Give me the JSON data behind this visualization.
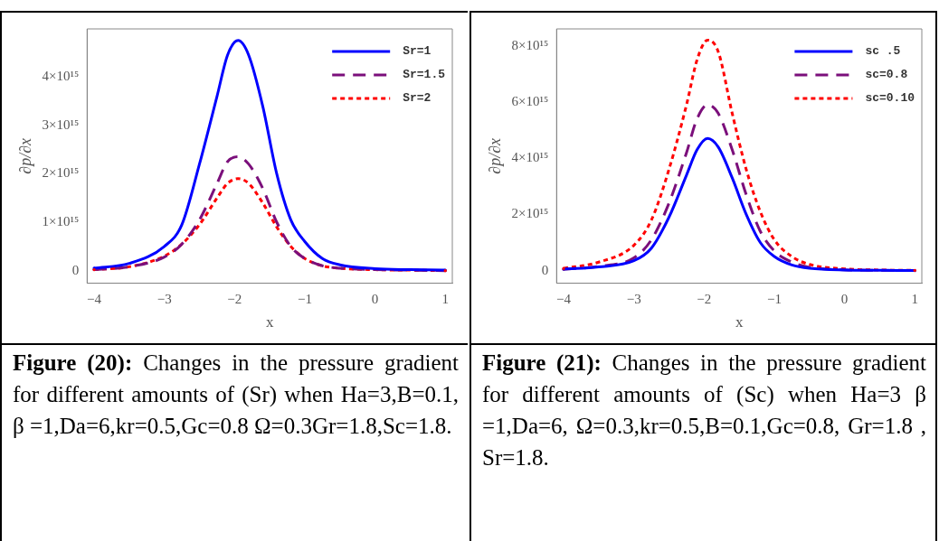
{
  "chart_data": [
    {
      "type": "line",
      "xlabel": "x",
      "ylabel": "∂p/∂x",
      "legend": "top right",
      "grid": false,
      "x": [
        -4,
        -3.5,
        -3,
        -2.75,
        -2.5,
        -2.25,
        -2.1,
        -1.95,
        -1.8,
        -1.6,
        -1.4,
        -1.2,
        -1,
        -0.75,
        -0.5,
        0,
        0.5,
        1
      ],
      "series": [
        {
          "name": "Sr=1",
          "color": "#0000ff",
          "line_style": "solid",
          "values": [
            50000000000000.0,
            150000000000000.0,
            500000000000000.0,
            950000000000000.0,
            2200000000000000.0,
            3600000000000000.0,
            4450000000000000.0,
            4750000000000000.0,
            4450000000000000.0,
            3400000000000000.0,
            2000000000000000.0,
            1050000000000000.0,
            600000000000000.0,
            250000000000000.0,
            120000000000000.0,
            40000000000000.0,
            20000000000000.0,
            10000000000000.0
          ]
        },
        {
          "name": "Sr=1.5",
          "color": "#7b0f7b",
          "line_style": "dashed",
          "values": [
            20000000000000.0,
            80000000000000.0,
            280000000000000.0,
            550000000000000.0,
            1050000000000000.0,
            1800000000000000.0,
            2250000000000000.0,
            2350000000000000.0,
            2200000000000000.0,
            1700000000000000.0,
            1000000000000000.0,
            500000000000000.0,
            250000000000000.0,
            100000000000000.0,
            50000000000000.0,
            20000000000000.0,
            10000000000000.0,
            0
          ]
        },
        {
          "name": "Sr=2",
          "color": "#ff0000",
          "line_style": "dotted",
          "values": [
            20000000000000.0,
            80000000000000.0,
            300000000000000.0,
            550000000000000.0,
            950000000000000.0,
            1500000000000000.0,
            1800000000000000.0,
            1900000000000000.0,
            1800000000000000.0,
            1400000000000000.0,
            900000000000000.0,
            500000000000000.0,
            250000000000000.0,
            100000000000000.0,
            50000000000000.0,
            20000000000000.0,
            10000000000000.0,
            0
          ]
        }
      ],
      "xlim": [
        -4.1,
        1.1
      ],
      "xticks": [
        -4,
        -3,
        -2,
        -1,
        0,
        1
      ],
      "ylim": [
        -260000000000000.0,
        4990000000000000.0
      ],
      "yticks": [
        0,
        {
          "value": 1000000000000000.0,
          "label": "1×10¹⁵"
        },
        {
          "value": 2000000000000000.0,
          "label": "2×10¹⁵"
        },
        {
          "value": 3000000000000000.0,
          "label": "3×10¹⁵"
        },
        {
          "value": 4000000000000000.0,
          "label": "4×10¹⁵"
        }
      ],
      "annotations": [
        "Figure (20):",
        "Changes in the pressure gradient for different amounts of (Sr) when Ha=3,B=0.1, β =1,Da=6,kr=0.5,Gc=0.8 Ω=0.3Gr=1.8,Sc=1.8."
      ]
    },
    {
      "type": "line",
      "xlabel": "x",
      "ylabel": "∂p/∂x",
      "legend": "top right",
      "grid": false,
      "x": [
        -4,
        -3.5,
        -3,
        -2.75,
        -2.5,
        -2.25,
        -2.1,
        -1.95,
        -1.8,
        -1.6,
        -1.4,
        -1.2,
        -1,
        -0.75,
        -0.5,
        0,
        0.5,
        1
      ],
      "series": [
        {
          "name": "sc .5",
          "color": "#0000ff",
          "line_style": "solid",
          "values": [
            50000000000000.0,
            130000000000000.0,
            350000000000000.0,
            800000000000000.0,
            1900000000000000.0,
            3400000000000000.0,
            4300000000000000.0,
            4700000000000000.0,
            4400000000000000.0,
            3300000000000000.0,
            2000000000000000.0,
            1000000000000000.0,
            500000000000000.0,
            200000000000000.0,
            80000000000000.0,
            20000000000000.0,
            10000000000000.0,
            0
          ]
        },
        {
          "name": "sc=0.8",
          "color": "#7b0f7b",
          "line_style": "dashed",
          "values": [
            50000000000000.0,
            150000000000000.0,
            450000000000000.0,
            1100000000000000.0,
            2400000000000000.0,
            4200000000000000.0,
            5400000000000000.0,
            5900000000000000.0,
            5600000000000000.0,
            4300000000000000.0,
            2700000000000000.0,
            1400000000000000.0,
            700000000000000.0,
            300000000000000.0,
            120000000000000.0,
            30000000000000.0,
            10000000000000.0,
            0
          ]
        },
        {
          "name": "sc=0.10",
          "color": "#ff0000",
          "line_style": "dotted",
          "values": [
            80000000000000.0,
            300000000000000.0,
            900000000000000.0,
            1800000000000000.0,
            3600000000000000.0,
            5900000000000000.0,
            7500000000000000.0,
            8200000000000000.0,
            7800000000000000.0,
            5600000000000000.0,
            3600000000000000.0,
            2100000000000000.0,
            1100000000000000.0,
            500000000000000.0,
            220000000000000.0,
            60000000000000.0,
            20000000000000.0,
            10000000000000.0
          ]
        }
      ],
      "xlim": [
        -4.1,
        1.1
      ],
      "xticks": [
        -4,
        -3,
        -2,
        -1,
        0,
        1
      ],
      "ylim": [
        -450000000000000.0,
        8600000000000000.0
      ],
      "yticks": [
        0,
        {
          "value": 2000000000000000.0,
          "label": "2×10¹⁵"
        },
        {
          "value": 4000000000000000.0,
          "label": "4×10¹⁵"
        },
        {
          "value": 6000000000000000.0,
          "label": "6×10¹⁵"
        },
        {
          "value": 8000000000000000.0,
          "label": "8×10¹⁵"
        }
      ],
      "annotations": [
        "Figure (21):",
        "Changes in the pressure gradient for different amounts of (Sc) when Ha=3 β =1,Da=6, Ω=0.3,kr=0.5,B=0.1,Gc=0.8, Gr=1.8 , Sr=1.8."
      ]
    }
  ]
}
